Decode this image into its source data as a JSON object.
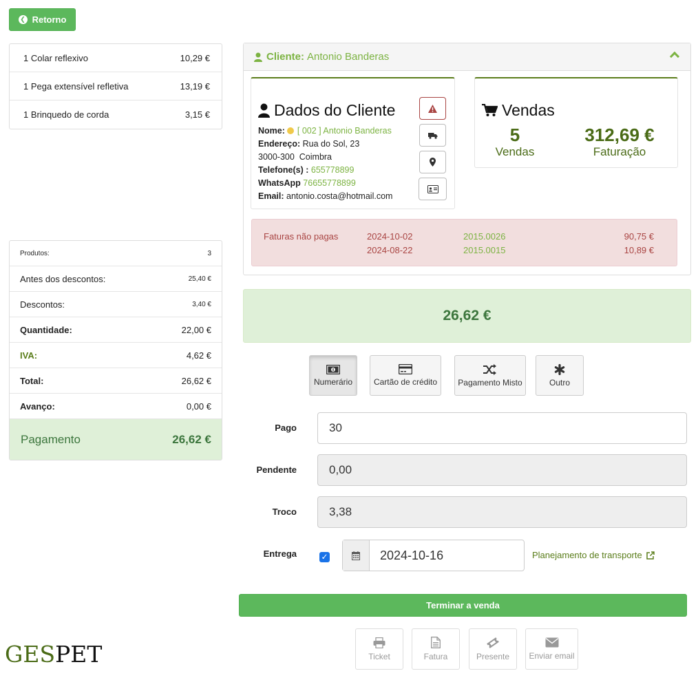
{
  "back_button": {
    "label": "Retorno"
  },
  "cart": [
    {
      "qty": "1",
      "name": "Colar reflexivo",
      "price": "10,29 €"
    },
    {
      "qty": "1",
      "name": "Pega extensível refletiva",
      "price": "13,19 €"
    },
    {
      "qty": "1",
      "name": "Brinquedo de corda",
      "price": "3,15 €"
    }
  ],
  "summary": {
    "produtos_label": "Produtos:",
    "produtos_value": "3",
    "antes_label": "Antes dos descontos:",
    "antes_value": "25,40 €",
    "descontos_label": "Descontos:",
    "descontos_value": "3,40 €",
    "quantidade_label": "Quantidade:",
    "quantidade_value": "22,00 €",
    "iva_label": "IVA:",
    "iva_value": "4,62 €",
    "total_label": "Total:",
    "total_value": "26,62 €",
    "avanco_label": "Avanço:",
    "avanco_value": "0,00 €",
    "pagamento_label": "Pagamento",
    "pagamento_value": "26,62 €"
  },
  "client": {
    "header_label": "Cliente:",
    "header_name": "Antonio Banderas",
    "dados_title": "Dados do Cliente",
    "nome_label": "Nome:",
    "nome_value": "[ 002 ] Antonio Banderas",
    "endereco_label": "Endereço:",
    "endereco_value": "Rua do Sol, 23",
    "cidade": "3000-300  Coimbra",
    "telefone_label": "Telefone(s) :",
    "telefone_value": "655778899",
    "whatsapp_label": "WhatsApp",
    "whatsapp_value": "76655778899",
    "email_label": "Email:",
    "email_value": "antonio.costa@hotmail.com"
  },
  "vendas": {
    "title": "Vendas",
    "count": "5",
    "count_label": "Vendas",
    "faturacao": "312,69 €",
    "faturacao_label": "Faturação"
  },
  "unpaid": {
    "label": "Faturas não pagas",
    "rows": [
      {
        "date": "2024-10-02",
        "number": "2015.0026",
        "amount": "90,75 €"
      },
      {
        "date": "2024-08-22",
        "number": "2015.0015",
        "amount": "10,89 €"
      }
    ]
  },
  "total_display": "26,62 €",
  "payment_methods": {
    "cash": "Numerário",
    "card": "Cartão de crédito",
    "mixed": "Pagamento Misto",
    "other": "Outro"
  },
  "form": {
    "pago_label": "Pago",
    "pago_value": "30",
    "pendente_label": "Pendente",
    "pendente_value": "0,00",
    "troco_label": "Troco",
    "troco_value": "3,38",
    "entrega_label": "Entrega",
    "entrega_checked": true,
    "entrega_date": "2024-10-16",
    "transport_link": "Planejamento de transporte"
  },
  "finish_button": "Terminar a venda",
  "documents": {
    "ticket": "Ticket",
    "fatura": "Fatura",
    "presente": "Presente",
    "email": "Enviar email"
  },
  "logo": {
    "part1": "GES",
    "part2": "PET"
  },
  "colors": {
    "accent": "#5cb85c",
    "brand": "#4a6b16",
    "alert": "#a94442"
  }
}
